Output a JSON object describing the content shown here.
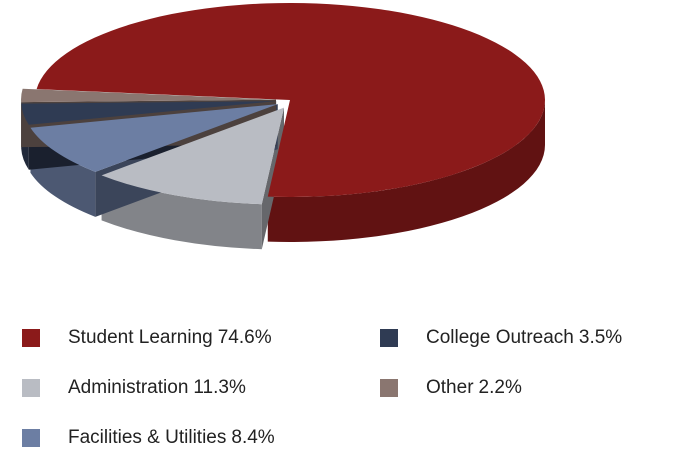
{
  "chart_data": {
    "type": "pie",
    "categories": [
      "Student Learning",
      "Administration",
      "Facilities & Utilities",
      "College Outreach",
      "Other"
    ],
    "values": [
      74.6,
      11.3,
      8.4,
      3.5,
      2.2
    ],
    "value_labels": [
      "74.6%",
      "11.3%",
      "8.4%",
      "3.5%",
      "2.2%"
    ],
    "colors": [
      "#8b1a1a",
      "#b9bcc3",
      "#6c7ea3",
      "#2f3b53",
      "#8a7670"
    ],
    "legend": "bottom"
  }
}
